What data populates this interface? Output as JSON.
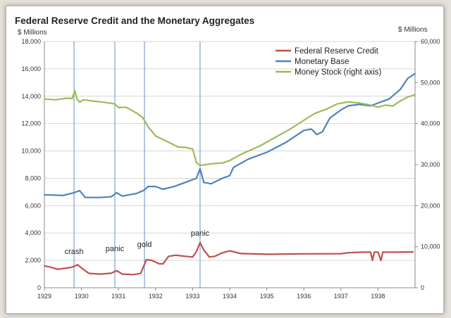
{
  "chart_data": {
    "type": "line",
    "title": "Federal Reserve Credit and the Monetary Aggregates",
    "ylabel_left": "$ Millions",
    "ylabel_right": "$ Millions",
    "xlim": [
      1929,
      1939
    ],
    "ylim_left": [
      0,
      18000
    ],
    "ylim_right": [
      0,
      60000
    ],
    "x_ticks": [
      "1929",
      "1930",
      "1931",
      "1932",
      "1933",
      "1934",
      "1935",
      "1936",
      "1937",
      "1938"
    ],
    "y_ticks_left": [
      "0",
      "2,000",
      "4,000",
      "6,000",
      "8,000",
      "10,000",
      "12,000",
      "14,000",
      "16,000",
      "18,000"
    ],
    "y_ticks_right": [
      "0",
      "10,000",
      "20,000",
      "30,000",
      "40,000",
      "50,000",
      "60,000"
    ],
    "grid": "horizontal",
    "legend_position": "top-right",
    "event_lines": [
      {
        "x": 1929.8,
        "label": "crash"
      },
      {
        "x": 1930.9,
        "label": "panic"
      },
      {
        "x": 1931.7,
        "label": "gold"
      },
      {
        "x": 1933.2,
        "label": "panic"
      }
    ],
    "series": [
      {
        "name": "Federal Reserve Credit",
        "color": "#c0504d",
        "axis": "left",
        "points": [
          [
            1929.0,
            1600
          ],
          [
            1929.15,
            1520
          ],
          [
            1929.35,
            1350
          ],
          [
            1929.55,
            1420
          ],
          [
            1929.75,
            1500
          ],
          [
            1929.9,
            1680
          ],
          [
            1930.0,
            1450
          ],
          [
            1930.2,
            1050
          ],
          [
            1930.5,
            1000
          ],
          [
            1930.8,
            1060
          ],
          [
            1930.95,
            1250
          ],
          [
            1931.1,
            1000
          ],
          [
            1931.4,
            960
          ],
          [
            1931.6,
            1060
          ],
          [
            1931.75,
            2050
          ],
          [
            1931.9,
            2000
          ],
          [
            1932.1,
            1750
          ],
          [
            1932.2,
            1750
          ],
          [
            1932.35,
            2300
          ],
          [
            1932.55,
            2380
          ],
          [
            1932.8,
            2300
          ],
          [
            1933.0,
            2250
          ],
          [
            1933.1,
            2650
          ],
          [
            1933.2,
            3300
          ],
          [
            1933.3,
            2750
          ],
          [
            1933.45,
            2250
          ],
          [
            1933.6,
            2300
          ],
          [
            1933.8,
            2550
          ],
          [
            1934.0,
            2700
          ],
          [
            1934.3,
            2500
          ],
          [
            1935.0,
            2450
          ],
          [
            1936.0,
            2480
          ],
          [
            1937.0,
            2490
          ],
          [
            1937.2,
            2560
          ],
          [
            1937.6,
            2600
          ],
          [
            1937.8,
            2600
          ],
          [
            1937.85,
            2000
          ],
          [
            1937.9,
            2600
          ],
          [
            1938.0,
            2600
          ],
          [
            1938.08,
            2000
          ],
          [
            1938.13,
            2600
          ],
          [
            1938.5,
            2600
          ],
          [
            1938.95,
            2620
          ]
        ]
      },
      {
        "name": "Monetary Base",
        "color": "#4f81bd",
        "axis": "left",
        "points": [
          [
            1929.0,
            6800
          ],
          [
            1929.5,
            6750
          ],
          [
            1929.8,
            6950
          ],
          [
            1929.95,
            7100
          ],
          [
            1930.1,
            6600
          ],
          [
            1930.5,
            6600
          ],
          [
            1930.8,
            6650
          ],
          [
            1930.95,
            6950
          ],
          [
            1931.1,
            6700
          ],
          [
            1931.5,
            6900
          ],
          [
            1931.7,
            7150
          ],
          [
            1931.8,
            7400
          ],
          [
            1932.0,
            7400
          ],
          [
            1932.2,
            7200
          ],
          [
            1932.5,
            7400
          ],
          [
            1932.8,
            7700
          ],
          [
            1933.1,
            8000
          ],
          [
            1933.2,
            8700
          ],
          [
            1933.3,
            7700
          ],
          [
            1933.5,
            7600
          ],
          [
            1933.8,
            8000
          ],
          [
            1934.0,
            8200
          ],
          [
            1934.1,
            8800
          ],
          [
            1934.5,
            9400
          ],
          [
            1935.0,
            9900
          ],
          [
            1935.5,
            10600
          ],
          [
            1936.0,
            11500
          ],
          [
            1936.2,
            11600
          ],
          [
            1936.35,
            11200
          ],
          [
            1936.5,
            11400
          ],
          [
            1936.7,
            12400
          ],
          [
            1937.0,
            13000
          ],
          [
            1937.2,
            13300
          ],
          [
            1937.5,
            13400
          ],
          [
            1937.8,
            13300
          ],
          [
            1938.0,
            13500
          ],
          [
            1938.3,
            13800
          ],
          [
            1938.6,
            14500
          ],
          [
            1938.8,
            15300
          ],
          [
            1939.0,
            15650
          ]
        ]
      },
      {
        "name": "Money Stock (right axis)",
        "color": "#9bbb59",
        "axis": "right",
        "points": [
          [
            1929.0,
            46000
          ],
          [
            1929.3,
            45800
          ],
          [
            1929.6,
            46200
          ],
          [
            1929.75,
            46100
          ],
          [
            1929.82,
            48000
          ],
          [
            1929.88,
            46000
          ],
          [
            1929.95,
            45200
          ],
          [
            1930.05,
            45800
          ],
          [
            1930.3,
            45500
          ],
          [
            1930.6,
            45200
          ],
          [
            1930.9,
            44800
          ],
          [
            1931.0,
            43900
          ],
          [
            1931.2,
            44000
          ],
          [
            1931.5,
            42500
          ],
          [
            1931.65,
            41500
          ],
          [
            1931.8,
            39200
          ],
          [
            1932.0,
            37000
          ],
          [
            1932.3,
            35700
          ],
          [
            1932.6,
            34300
          ],
          [
            1932.8,
            34200
          ],
          [
            1933.0,
            33800
          ],
          [
            1933.1,
            30500
          ],
          [
            1933.2,
            29800
          ],
          [
            1933.5,
            30200
          ],
          [
            1933.8,
            30400
          ],
          [
            1934.0,
            31000
          ],
          [
            1934.3,
            32500
          ],
          [
            1934.8,
            34500
          ],
          [
            1935.2,
            36500
          ],
          [
            1935.6,
            38500
          ],
          [
            1936.0,
            40800
          ],
          [
            1936.3,
            42500
          ],
          [
            1936.6,
            43500
          ],
          [
            1936.9,
            44800
          ],
          [
            1937.2,
            45300
          ],
          [
            1937.5,
            45000
          ],
          [
            1937.8,
            44500
          ],
          [
            1938.0,
            44000
          ],
          [
            1938.2,
            44500
          ],
          [
            1938.4,
            44300
          ],
          [
            1938.6,
            45500
          ],
          [
            1938.8,
            46500
          ],
          [
            1939.0,
            47000
          ]
        ]
      }
    ]
  }
}
